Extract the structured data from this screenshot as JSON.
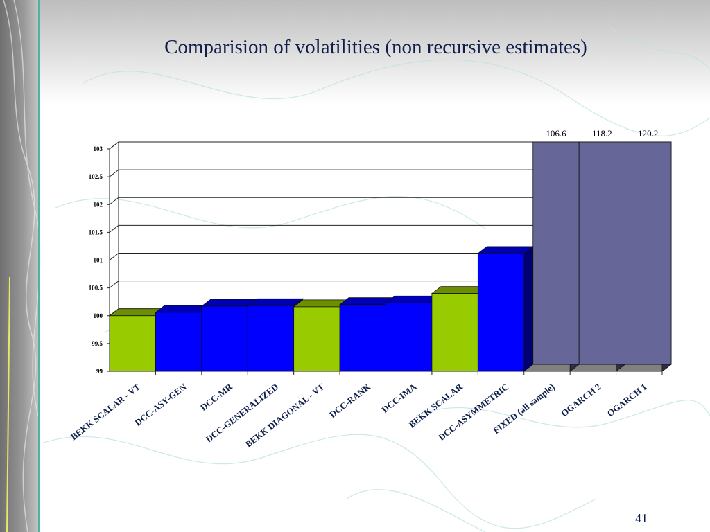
{
  "slide": {
    "title": "Comparision of volatilities (non recursive estimates)",
    "page_number": "41"
  },
  "colors": {
    "green": "#99cc00",
    "blue": "#0000ff",
    "purple": "#666699",
    "title": "#0f1d4a"
  },
  "chart_data": {
    "type": "bar",
    "title": "",
    "xlabel": "",
    "ylabel": "",
    "ylim": [
      99,
      103
    ],
    "yticks": [
      "99",
      "99.5",
      "100",
      "100.5",
      "101",
      "101.5",
      "102",
      "102.5",
      "103"
    ],
    "grid": true,
    "categories": [
      "BEKK SCALAR - VT",
      "DCC-ASY-GEN",
      "DCC-MR",
      "DCC-GENERALIZED",
      "BEKK DIAGONAL - VT",
      "DCC-RANK",
      "DCC-IMA",
      "BEKK SCALAR",
      "DCC-ASYMMETRIC",
      "FIXED (all sample)",
      "OGARCH 2",
      "OGARCH 1"
    ],
    "values": [
      100.0,
      100.06,
      100.17,
      100.18,
      100.16,
      100.2,
      100.23,
      100.4,
      101.12,
      106.6,
      118.2,
      120.2
    ],
    "bar_colors": [
      "green",
      "blue",
      "blue",
      "blue",
      "green",
      "blue",
      "blue",
      "green",
      "blue",
      "purple",
      "purple",
      "purple"
    ],
    "data_labels": [
      "",
      "",
      "",
      "",
      "",
      "",
      "",
      "",
      "",
      "106.6",
      "118.2",
      "120.2"
    ]
  }
}
